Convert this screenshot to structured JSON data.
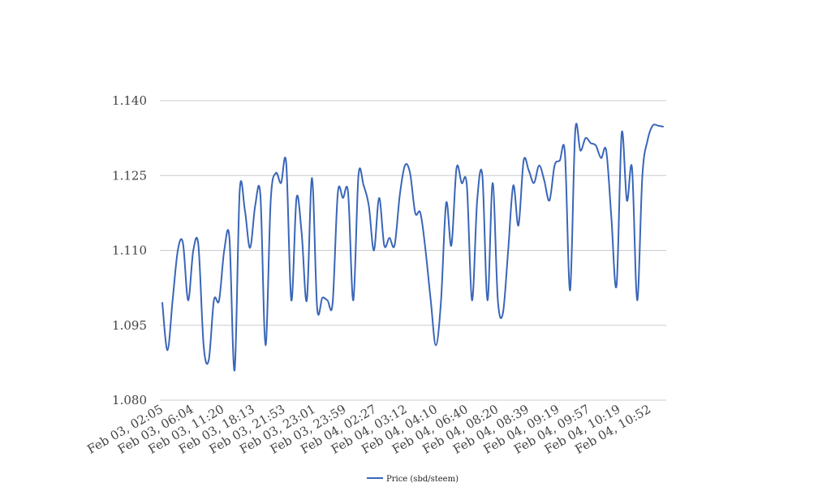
{
  "chart_data": {
    "type": "line",
    "title": "",
    "xlabel": "",
    "ylabel": "",
    "ylim": [
      1.08,
      1.14
    ],
    "y_ticks": [
      "1.140",
      "1.125",
      "1.110",
      "1.095",
      "1.080"
    ],
    "y_tick_values": [
      1.14,
      1.125,
      1.11,
      1.095,
      1.08
    ],
    "x_tick_labels": [
      "Feb 03, 02:05",
      "Feb 03, 06:04",
      "Feb 03, 11:20",
      "Feb 03, 18:13",
      "Feb 03, 21:53",
      "Feb 03, 23:01",
      "Feb 03, 23:59",
      "Feb 04, 02:27",
      "Feb 04, 03:12",
      "Feb 04, 04:10",
      "Feb 04, 06:40",
      "Feb 04, 08:20",
      "Feb 04, 08:39",
      "Feb 04, 09:19",
      "Feb 04, 09:57",
      "Feb 04, 10:19",
      "Feb 04, 10:52"
    ],
    "grid": true,
    "legend_position": "bottom",
    "series": [
      {
        "name": "Price (sbd/steem)",
        "color": "#3a66b8",
        "values": [
          1.0995,
          1.09,
          1.1,
          1.11,
          1.1115,
          1.1,
          1.11,
          1.111,
          1.091,
          1.088,
          1.1,
          1.1,
          1.11,
          1.1125,
          1.086,
          1.122,
          1.118,
          1.1105,
          1.119,
          1.121,
          1.091,
          1.12,
          1.1255,
          1.1235,
          1.1275,
          1.1,
          1.1205,
          1.1135,
          1.1,
          1.1245,
          1.0985,
          1.1005,
          1.1,
          1.0995,
          1.1215,
          1.1205,
          1.1215,
          1.1,
          1.125,
          1.123,
          1.119,
          1.11,
          1.1205,
          1.111,
          1.1125,
          1.111,
          1.121,
          1.127,
          1.1255,
          1.1175,
          1.1175,
          1.11,
          1.1,
          1.091,
          1.1,
          1.1195,
          1.111,
          1.1265,
          1.1235,
          1.123,
          1.1,
          1.12,
          1.125,
          1.1,
          1.1235,
          1.1,
          1.0975,
          1.11,
          1.123,
          1.115,
          1.128,
          1.126,
          1.1235,
          1.127,
          1.124,
          1.12,
          1.127,
          1.128,
          1.1295,
          1.102,
          1.134,
          1.13,
          1.1325,
          1.1315,
          1.131,
          1.1285,
          1.13,
          1.1165,
          1.103,
          1.1335,
          1.12,
          1.1265,
          1.1,
          1.125,
          1.132,
          1.135,
          1.135,
          1.1348
        ]
      }
    ]
  }
}
